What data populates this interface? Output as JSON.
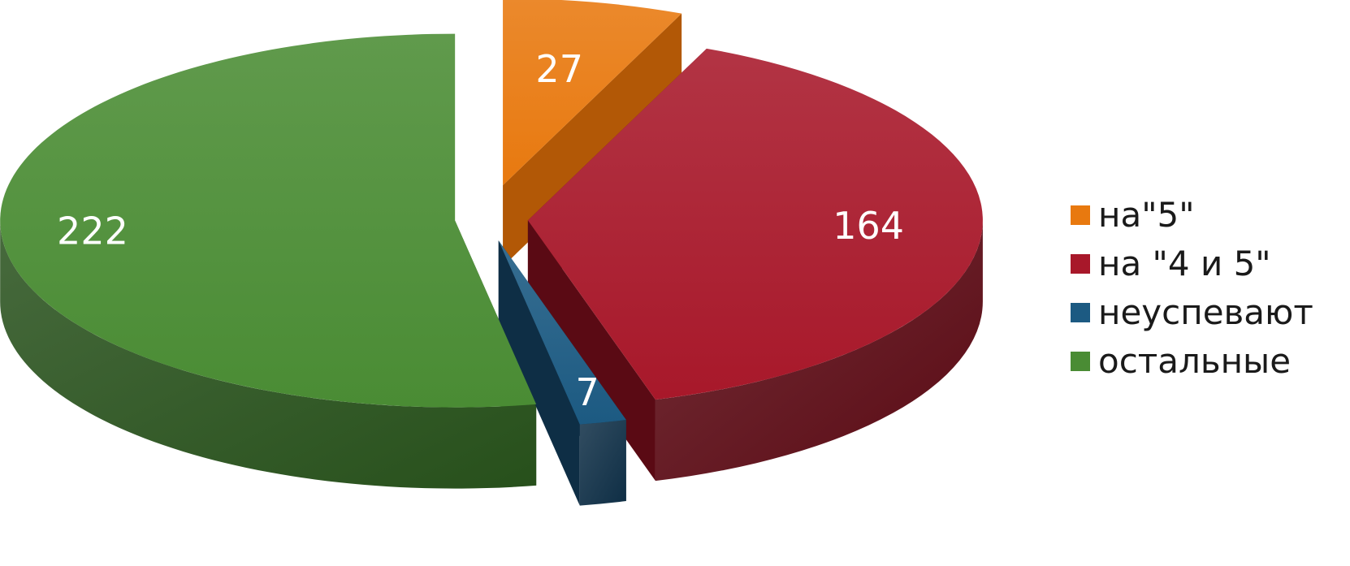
{
  "chart_data": {
    "type": "pie",
    "title": "",
    "categories": [
      "на\"5\"",
      "на \"4 и 5\"",
      "неуспевают",
      "остальные"
    ],
    "values": [
      27,
      164,
      7,
      222
    ],
    "colors": [
      "#E8790F",
      "#A8182A",
      "#1C5A82",
      "#4A8C34"
    ],
    "side_colors": [
      "#B25806",
      "#5A0A14",
      "#0E2E45",
      "#27501B"
    ],
    "three_d": true,
    "exploded": true,
    "legend_position": "right"
  }
}
